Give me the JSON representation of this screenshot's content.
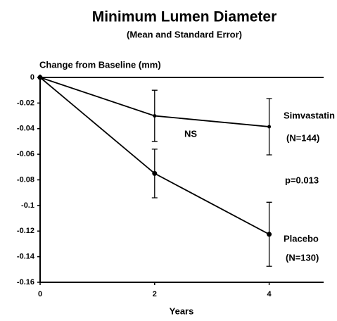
{
  "chart_data": {
    "type": "line",
    "title": "Minimum Lumen Diameter",
    "subtitle": "(Mean and Standard Error)",
    "y_label": "Change from Baseline (mm)",
    "x_label": "Years",
    "x": [
      0,
      2,
      4
    ],
    "series": [
      {
        "name": "Simvastatin",
        "color": "#000000",
        "values": [
          0,
          -0.03,
          -0.0385
        ],
        "errors": [
          null,
          0.02,
          0.022
        ]
      },
      {
        "name": "Placebo",
        "color": "#000000",
        "values": [
          0,
          -0.075,
          -0.1225
        ],
        "errors": [
          null,
          0.019,
          0.025
        ]
      }
    ],
    "annotations": [
      "(N=144)",
      "(N=130)",
      "NS",
      "p=0.013"
    ],
    "xlim": [
      0,
      5
    ],
    "xticks": [
      0,
      2,
      4
    ],
    "ylim": [
      -0.16,
      0
    ],
    "yticks": [
      0,
      -0.02,
      -0.04,
      -0.06,
      -0.08,
      -0.1,
      -0.12,
      -0.14,
      -0.16
    ]
  }
}
